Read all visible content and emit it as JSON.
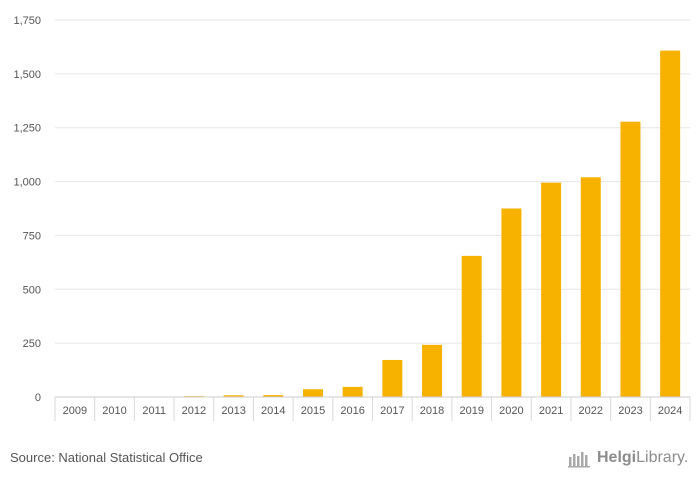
{
  "chart_data": {
    "type": "bar",
    "categories": [
      "2009",
      "2010",
      "2011",
      "2012",
      "2013",
      "2014",
      "2015",
      "2016",
      "2017",
      "2018",
      "2019",
      "2020",
      "2021",
      "2022",
      "2023",
      "2024"
    ],
    "values": [
      0,
      0,
      0,
      4,
      8,
      9,
      36,
      47,
      172,
      242,
      655,
      875,
      995,
      1020,
      1278,
      1608
    ],
    "ylim": [
      0,
      1750
    ],
    "yticks": [
      0,
      250,
      500,
      750,
      1000,
      1250,
      1500,
      1750
    ],
    "ytick_labels": [
      "0",
      "250",
      "500",
      "750",
      "1,000",
      "1,250",
      "1,500",
      "1,750"
    ],
    "title": "",
    "xlabel": "",
    "ylabel": "",
    "bar_color": "#F7B200",
    "grid": true
  },
  "footer": {
    "source": "Source: National Statistical Office",
    "logo_first": "Helgi",
    "logo_second": "Library."
  }
}
